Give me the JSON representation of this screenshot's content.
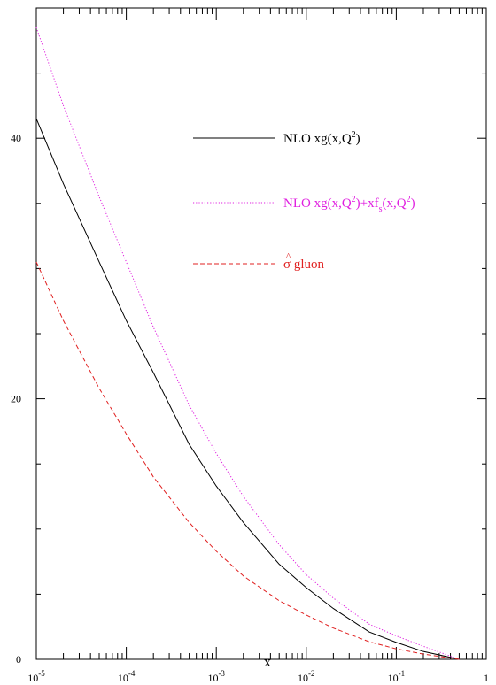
{
  "chart_data": {
    "type": "line",
    "x_scale": "log",
    "xlim": [
      1e-05,
      1
    ],
    "ylim": [
      0,
      50
    ],
    "xlabel": "x",
    "ylabel": "",
    "title": "",
    "grid": false,
    "legend_position": "top-right",
    "x_ticks": [
      {
        "value": 1e-05,
        "base": "10",
        "exp": "-5"
      },
      {
        "value": 0.0001,
        "base": "10",
        "exp": "-4"
      },
      {
        "value": 0.001,
        "base": "10",
        "exp": "-3"
      },
      {
        "value": 0.01,
        "base": "10",
        "exp": "-2"
      },
      {
        "value": 0.1,
        "base": "10",
        "exp": "-1"
      },
      {
        "value": 1,
        "base": "1",
        "exp": ""
      }
    ],
    "y_ticks": [
      {
        "value": 0,
        "label": "0"
      },
      {
        "value": 20,
        "label": "20"
      },
      {
        "value": 40,
        "label": "40"
      }
    ],
    "series": [
      {
        "name": "NLO xg(x,Q²)",
        "color": "#000000",
        "dash": "solid",
        "x": [
          1e-05,
          2e-05,
          5e-05,
          0.0001,
          0.0002,
          0.0005,
          0.001,
          0.002,
          0.005,
          0.01,
          0.02,
          0.05,
          0.1,
          0.2,
          0.5
        ],
        "y": [
          41.5,
          36.5,
          30.5,
          26.0,
          22.0,
          16.5,
          13.3,
          10.5,
          7.3,
          5.5,
          3.9,
          2.1,
          1.3,
          0.6,
          0.0
        ]
      },
      {
        "name": "NLO xg(x,Q²)+xf_s(x,Q²)",
        "color": "#e020e0",
        "dash": "dotted",
        "x": [
          1e-05,
          2e-05,
          5e-05,
          0.0001,
          0.0002,
          0.0005,
          0.001,
          0.002,
          0.005,
          0.01,
          0.02,
          0.05,
          0.1,
          0.2,
          0.5
        ],
        "y": [
          48.5,
          42.5,
          35.5,
          30.5,
          25.5,
          19.5,
          15.8,
          12.5,
          8.8,
          6.5,
          4.7,
          2.7,
          1.8,
          1.0,
          0.0
        ]
      },
      {
        "name": "σ̂ gluon",
        "color": "#e02020",
        "dash": "dashed",
        "x": [
          1e-05,
          2e-05,
          5e-05,
          0.0001,
          0.0002,
          0.0005,
          0.001,
          0.002,
          0.005,
          0.01,
          0.02,
          0.05,
          0.1,
          0.2,
          0.5
        ],
        "y": [
          30.5,
          26.0,
          20.8,
          17.3,
          14.0,
          10.5,
          8.3,
          6.4,
          4.5,
          3.4,
          2.4,
          1.35,
          0.8,
          0.4,
          0.0
        ]
      }
    ],
    "legend": [
      {
        "parts": [
          {
            "t": "NLO xg(x,Q"
          },
          {
            "t": "2",
            "sup": true
          },
          {
            "t": ")"
          }
        ]
      },
      {
        "parts": [
          {
            "t": "NLO xg(x,Q"
          },
          {
            "t": "2",
            "sup": true
          },
          {
            "t": ")+xf"
          },
          {
            "t": "s",
            "sub": true
          },
          {
            "t": "(x,Q"
          },
          {
            "t": "2",
            "sup": true
          },
          {
            "t": ")"
          }
        ]
      },
      {
        "parts": [
          {
            "t": "σ",
            "hat": "^"
          },
          {
            "t": " gluon"
          }
        ]
      }
    ]
  }
}
